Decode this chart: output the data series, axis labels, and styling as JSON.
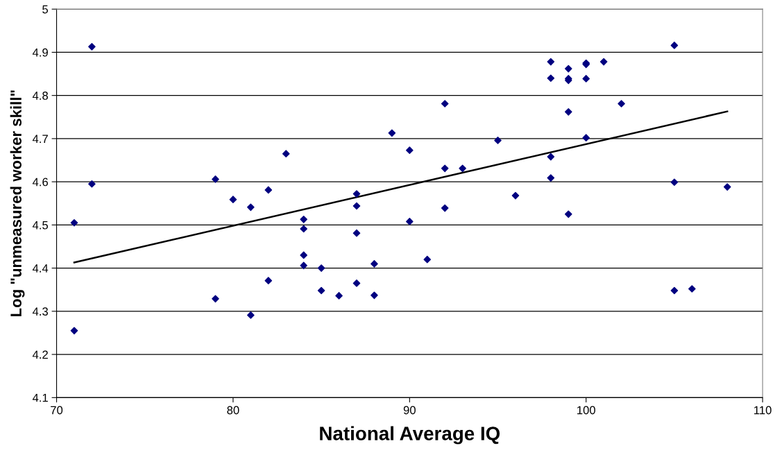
{
  "chart_data": {
    "type": "scatter",
    "xlabel": "National Average IQ",
    "ylabel": "Log \"unmeasured worker skill\"",
    "xlim": [
      70,
      110
    ],
    "xticks": [
      70,
      80,
      90,
      100,
      110
    ],
    "ylim": [
      4.1,
      5
    ],
    "yticks": [
      4.1,
      4.2,
      4.3,
      4.4,
      4.5,
      4.6,
      4.7,
      4.8,
      4.9,
      5
    ],
    "grid": "y",
    "marker": "diamond",
    "series": [
      {
        "color": "#000080",
        "x": [
          72,
          72,
          71,
          71,
          79,
          79,
          80,
          81,
          81,
          82,
          82,
          83,
          84,
          84,
          84,
          84,
          85,
          85,
          86,
          87,
          87,
          87,
          87,
          88,
          88,
          89,
          90,
          90,
          91,
          92,
          92,
          92,
          93,
          95,
          96,
          98,
          98,
          98,
          98,
          99,
          99,
          99,
          99,
          99,
          100,
          100,
          100,
          100,
          101,
          102,
          105,
          105,
          105,
          106,
          108
        ],
        "values": [
          4.913,
          4.595,
          4.505,
          4.255,
          4.606,
          4.329,
          4.559,
          4.541,
          4.291,
          4.581,
          4.371,
          4.665,
          4.513,
          4.491,
          4.43,
          4.406,
          4.4,
          4.348,
          4.336,
          4.572,
          4.544,
          4.481,
          4.365,
          4.41,
          4.337,
          4.713,
          4.673,
          4.508,
          4.42,
          4.781,
          4.631,
          4.539,
          4.631,
          4.696,
          4.568,
          4.878,
          4.84,
          4.658,
          4.609,
          4.862,
          4.839,
          4.835,
          4.762,
          4.525,
          4.875,
          4.872,
          4.839,
          4.702,
          4.878,
          4.781,
          4.916,
          4.599,
          4.348,
          4.352,
          4.588
        ]
      },
      {
        "type": "line",
        "color": "#000000",
        "marker": "none",
        "line_style": "solid",
        "x": [
          71,
          108
        ],
        "values": [
          4.413,
          4.763
        ]
      }
    ]
  }
}
